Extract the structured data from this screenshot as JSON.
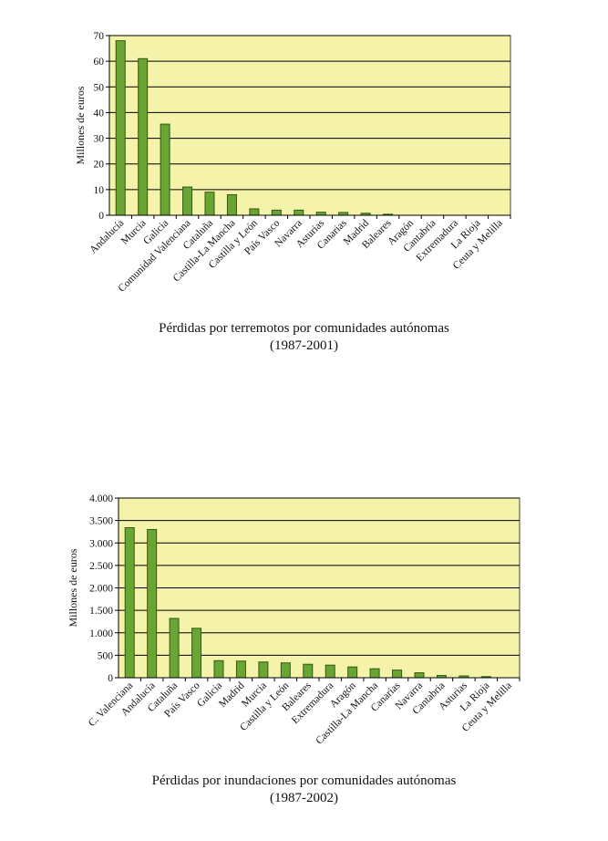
{
  "colors": {
    "plot_bg": "#f5f3aa",
    "bar_fill": "#6aa533",
    "bar_stroke": "#2f5a14",
    "grid": "#000000"
  },
  "chart_data": [
    {
      "type": "bar",
      "title": "Pérdidas por terremotos por comunidades autónomas",
      "subtitle": "(1987-2001)",
      "xlabel": "",
      "ylabel": "Millones de euros",
      "ylim": [
        0,
        70
      ],
      "yticks": [
        0,
        10,
        20,
        30,
        40,
        50,
        60,
        70
      ],
      "ytick_labels": [
        "0",
        "10",
        "20",
        "30",
        "40",
        "50",
        "60",
        "70"
      ],
      "grid": true,
      "categories": [
        "Andalucía",
        "Murcia",
        "Galicia",
        "Comunidad Valenciana",
        "Cataluña",
        "Castilla-La Mancha",
        "Castilla y León",
        "País Vasco",
        "Navarra",
        "Asturias",
        "Canarias",
        "Madrid",
        "Baleares",
        "Aragón",
        "Cantabria",
        "Extremadura",
        "La Rioja",
        "Ceuta y Melilla"
      ],
      "values": [
        68,
        61,
        35.5,
        11,
        9,
        8,
        2.5,
        2,
        2,
        1.2,
        1.1,
        0.8,
        0.4,
        0,
        0,
        0,
        0,
        0
      ]
    },
    {
      "type": "bar",
      "title": "Pérdidas por inundaciones por comunidades autónomas",
      "subtitle": "(1987-2002)",
      "xlabel": "",
      "ylabel": "Millones de euros",
      "ylim": [
        0,
        4000
      ],
      "yticks": [
        0,
        500,
        1000,
        1500,
        2000,
        2500,
        3000,
        3500,
        4000
      ],
      "ytick_labels": [
        "0",
        "500",
        "1.000",
        "1.500",
        "2.000",
        "2.500",
        "3.000",
        "3.500",
        "4.000"
      ],
      "grid": true,
      "categories": [
        "C. Valenciana",
        "Andalucía",
        "Cataluña",
        "País Vasco",
        "Galicia",
        "Madrid",
        "Murcia",
        "Castilla y León",
        "Baleares",
        "Extremadura",
        "Aragón",
        "Castilla-La Mancha",
        "Canarias",
        "Navarra",
        "Cantabria",
        "Asturias",
        "La Rioja",
        "Ceuta y Melilla"
      ],
      "values": [
        3340,
        3300,
        1320,
        1100,
        380,
        370,
        350,
        330,
        300,
        280,
        240,
        200,
        170,
        110,
        50,
        40,
        25,
        0
      ]
    }
  ]
}
